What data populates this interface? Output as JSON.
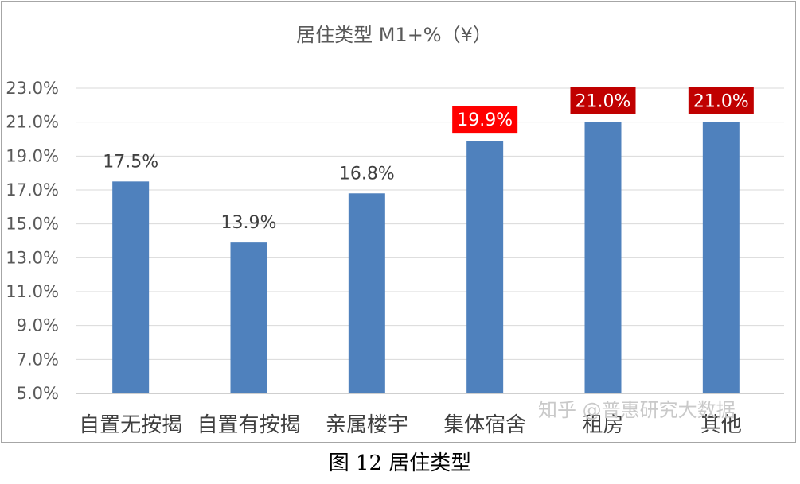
{
  "chart_data": {
    "type": "bar",
    "title": "居住类型 M1+%（¥）",
    "categories": [
      "自置无按揭",
      "自置有按揭",
      "亲属楼宇",
      "集体宿舍",
      "租房",
      "其他"
    ],
    "values": [
      17.5,
      13.9,
      16.8,
      19.9,
      21.0,
      21.0
    ],
    "data_labels": [
      "17.5%",
      "13.9%",
      "16.8%",
      "19.9%",
      "21.0%",
      "21.0%"
    ],
    "highlighted": [
      false,
      false,
      false,
      true,
      true,
      true
    ],
    "highlight_label_colors": [
      "#ff0000",
      "#c00000",
      "#c00000"
    ],
    "ylim": [
      5.0,
      23.0
    ],
    "yticks": [
      5.0,
      7.0,
      9.0,
      11.0,
      13.0,
      15.0,
      17.0,
      19.0,
      21.0,
      23.0
    ],
    "ytick_labels": [
      "5.0%",
      "7.0%",
      "9.0%",
      "11.0%",
      "13.0%",
      "15.0%",
      "17.0%",
      "19.0%",
      "21.0%",
      "23.0%"
    ],
    "grid": true,
    "legend": "none",
    "bar_color": "#4f81bd"
  },
  "caption": "图 12  居住类型",
  "watermark": "知乎 @普惠研究大数据"
}
